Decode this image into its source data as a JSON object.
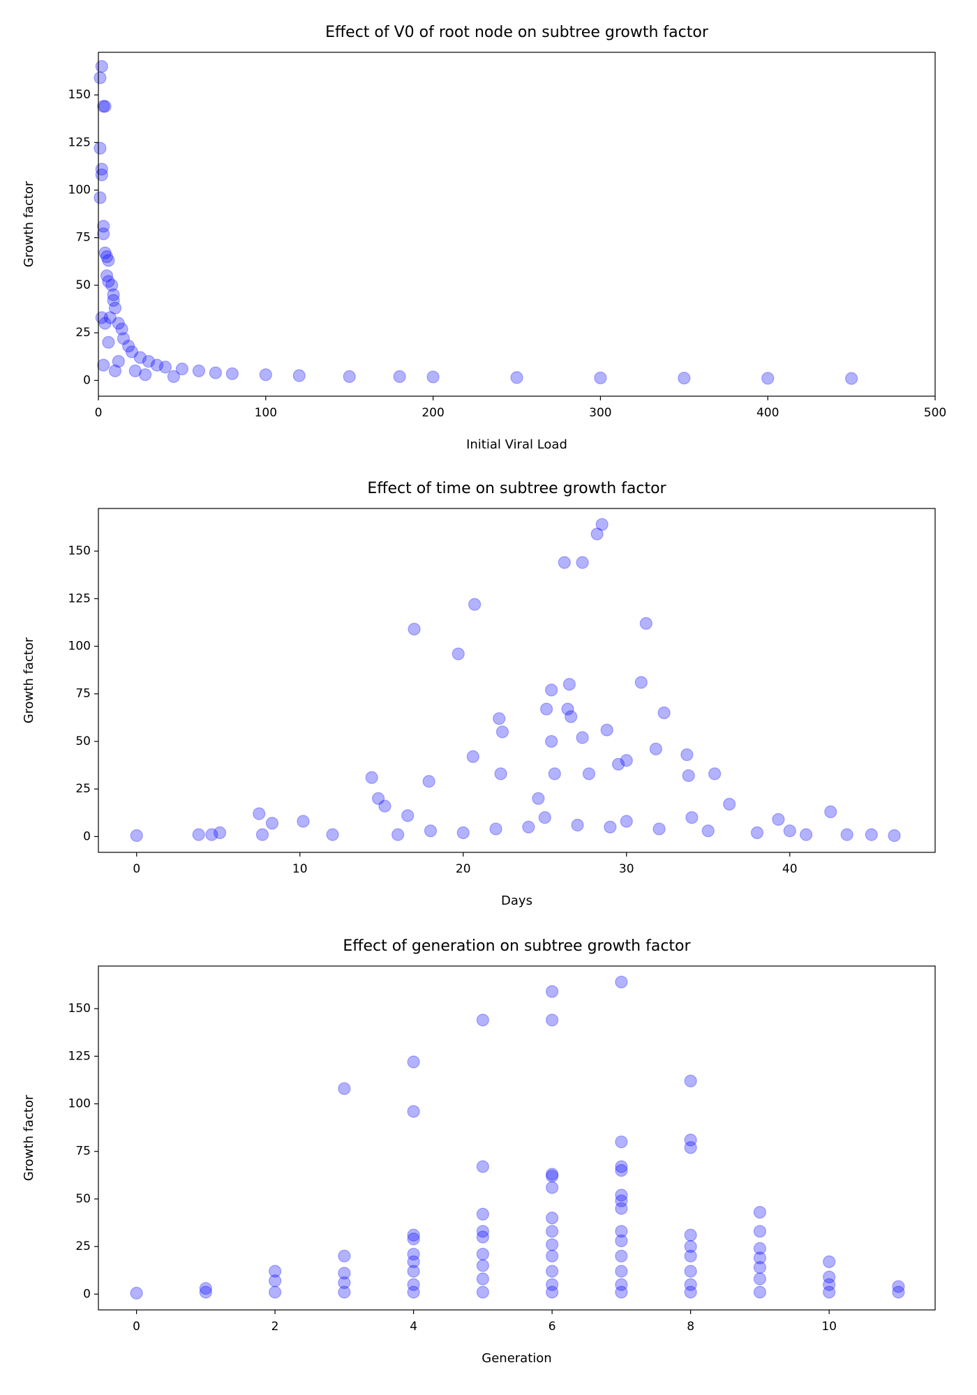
{
  "chart_data": [
    {
      "type": "scatter",
      "title": "Effect of V0 of root node on subtree growth factor",
      "x_label": "Initial Viral Load",
      "y_label": "Growth factor",
      "x": [
        2,
        1,
        3,
        4,
        1,
        2,
        2,
        1,
        3,
        3,
        4,
        5,
        6,
        5,
        6,
        8,
        9,
        9,
        10,
        2,
        4,
        7,
        12,
        14,
        15,
        3,
        6,
        10,
        18,
        20,
        25,
        30,
        35,
        40,
        50,
        60,
        70,
        80,
        100,
        120,
        150,
        180,
        200,
        250,
        300,
        350,
        400,
        450,
        12,
        22,
        28,
        45
      ],
      "y": [
        165,
        159,
        144,
        144,
        122,
        111,
        108,
        96,
        81,
        77,
        67,
        65,
        63,
        55,
        52,
        50,
        45,
        42,
        38,
        33,
        30,
        33,
        30,
        27,
        22,
        8,
        20,
        5,
        18,
        15,
        12,
        10,
        8,
        7,
        6,
        5,
        4,
        3.5,
        3,
        2.5,
        2,
        2,
        1.8,
        1.5,
        1.3,
        1.2,
        1.1,
        1,
        10,
        5,
        3,
        2
      ],
      "color": "#0000ff",
      "alpha": 0.3,
      "xlim": [
        0,
        500
      ],
      "ylim": [
        -8.3,
        172.4
      ],
      "xticks": [
        0,
        100,
        200,
        300,
        400,
        500
      ],
      "yticks": [
        0,
        25,
        50,
        75,
        100,
        125,
        150
      ]
    },
    {
      "type": "scatter",
      "title": "Effect of time on subtree growth factor",
      "x_label": "Days",
      "y_label": "Growth factor",
      "x": [
        0,
        3.8,
        4.6,
        5.1,
        7.5,
        7.7,
        8.3,
        10.2,
        14.4,
        14.8,
        15.2,
        16.6,
        17,
        17.9,
        19.7,
        20.7,
        20.6,
        22.2,
        22.4,
        22.3,
        24.6,
        25.1,
        25.4,
        25.4,
        25.6,
        26.2,
        26.4,
        26.5,
        26.6,
        27.3,
        27.3,
        27.7,
        28.2,
        28.5,
        28.8,
        29.5,
        30,
        30.9,
        31.2,
        31.8,
        32.3,
        33.7,
        33.8,
        35.4,
        36.3,
        39.3,
        42.5,
        45,
        46.4,
        12,
        18,
        22,
        24,
        27,
        29,
        32,
        35,
        38,
        41,
        20,
        30,
        25,
        34,
        16,
        40,
        43.5
      ],
      "y": [
        0.5,
        1,
        1,
        2,
        12,
        1,
        7,
        8,
        31,
        20,
        16,
        11,
        109,
        29,
        96,
        122,
        42,
        62,
        55,
        33,
        20,
        67,
        77,
        50,
        33,
        144,
        67,
        80,
        63,
        144,
        52,
        33,
        159,
        164,
        56,
        38,
        40,
        81,
        112,
        46,
        65,
        43,
        32,
        33,
        17,
        9,
        13,
        1,
        0.5,
        1,
        3,
        4,
        5,
        6,
        5,
        4,
        3,
        2,
        1,
        2,
        8,
        10,
        10,
        1,
        3,
        1
      ],
      "color": "#0000ff",
      "alpha": 0.3,
      "xlim": [
        -2.34,
        48.9
      ],
      "ylim": [
        -8.3,
        172.4
      ],
      "xticks": [
        0,
        10,
        20,
        30,
        40
      ],
      "yticks": [
        0,
        25,
        50,
        75,
        100,
        125,
        150
      ]
    },
    {
      "type": "scatter",
      "title": "Effect of generation on subtree growth factor",
      "x_label": "Generation",
      "y_label": "Growth factor",
      "x": [
        0,
        1,
        1,
        2,
        2,
        2,
        3,
        3,
        3,
        3,
        3,
        4,
        4,
        4,
        4,
        4,
        4,
        4,
        4,
        4,
        5,
        5,
        5,
        5,
        5,
        5,
        5,
        5,
        5,
        6,
        6,
        6,
        6,
        6,
        6,
        6,
        6,
        6,
        6,
        6,
        6,
        7,
        7,
        7,
        7,
        7,
        7,
        7,
        7,
        7,
        7,
        7,
        7,
        7,
        8,
        8,
        8,
        8,
        8,
        8,
        8,
        8,
        8,
        9,
        9,
        9,
        9,
        9,
        9,
        9,
        10,
        10,
        10,
        10,
        11,
        11
      ],
      "y": [
        0.5,
        1,
        3,
        1,
        7,
        12,
        108,
        20,
        11,
        6,
        1,
        122,
        96,
        31,
        29,
        21,
        17,
        12,
        5,
        1,
        144,
        67,
        42,
        33,
        30,
        21,
        15,
        8,
        1,
        159,
        144,
        63,
        62,
        56,
        40,
        33,
        26,
        20,
        12,
        5,
        1,
        164,
        80,
        67,
        65,
        52,
        49,
        45,
        33,
        28,
        20,
        12,
        5,
        1,
        112,
        81,
        77,
        31,
        25,
        20,
        12,
        5,
        1,
        43,
        33,
        24,
        19,
        14,
        8,
        1,
        17,
        9,
        5,
        1,
        4,
        1
      ],
      "color": "#0000ff",
      "alpha": 0.3,
      "xlim": [
        -0.55,
        11.53
      ],
      "ylim": [
        -8.3,
        172.4
      ],
      "xticks": [
        0,
        2,
        4,
        6,
        8,
        10
      ],
      "yticks": [
        0,
        25,
        50,
        75,
        100,
        125,
        150
      ]
    }
  ]
}
